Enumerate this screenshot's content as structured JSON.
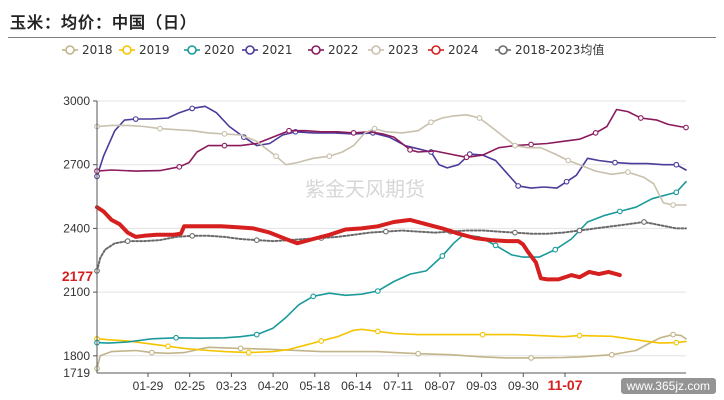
{
  "page": {
    "title": "玉米：均价：中国（日）",
    "watermark": "紫金天风期货",
    "footer": "www.365jz.com"
  },
  "chart_data": {
    "type": "line",
    "title": "玉米：均价：中国（日）",
    "legend_position": "top",
    "grid": "horizontal",
    "x_ticks": [
      "01-29",
      "02-25",
      "03-23",
      "04-20",
      "05-18",
      "06-14",
      "07-11",
      "08-07",
      "09-03",
      "09-30",
      "11-07"
    ],
    "ylim": [
      1719,
      3000
    ],
    "y_ticks": [
      1800,
      2100,
      2400,
      2700,
      3000
    ],
    "y_min_label": "1719",
    "last_value_label": "2177",
    "series": [
      {
        "name": "2018",
        "color": "#c2b48a",
        "width": 1.6,
        "points": [
          [
            1,
            1740
          ],
          [
            3,
            1800
          ],
          [
            10,
            1820
          ],
          [
            25,
            1825
          ],
          [
            35,
            1815
          ],
          [
            45,
            1812
          ],
          [
            55,
            1815
          ],
          [
            70,
            1840
          ],
          [
            90,
            1835
          ],
          [
            110,
            1830
          ],
          [
            140,
            1820
          ],
          [
            175,
            1820
          ],
          [
            200,
            1810
          ],
          [
            220,
            1805
          ],
          [
            240,
            1795
          ],
          [
            255,
            1790
          ],
          [
            270,
            1790
          ],
          [
            290,
            1792
          ],
          [
            300,
            1795
          ],
          [
            310,
            1800
          ],
          [
            320,
            1805
          ],
          [
            335,
            1825
          ],
          [
            343,
            1858
          ],
          [
            350,
            1885
          ],
          [
            358,
            1900
          ],
          [
            363,
            1895
          ],
          [
            366,
            1880
          ]
        ]
      },
      {
        "name": "2019",
        "color": "#f5c400",
        "width": 1.6,
        "points": [
          [
            1,
            1880
          ],
          [
            10,
            1875
          ],
          [
            20,
            1870
          ],
          [
            30,
            1860
          ],
          [
            45,
            1845
          ],
          [
            55,
            1835
          ],
          [
            70,
            1825
          ],
          [
            80,
            1820
          ],
          [
            95,
            1815
          ],
          [
            110,
            1820
          ],
          [
            120,
            1830
          ],
          [
            130,
            1850
          ],
          [
            140,
            1870
          ],
          [
            150,
            1890
          ],
          [
            160,
            1920
          ],
          [
            165,
            1925
          ],
          [
            175,
            1915
          ],
          [
            185,
            1905
          ],
          [
            200,
            1900
          ],
          [
            220,
            1900
          ],
          [
            240,
            1900
          ],
          [
            260,
            1900
          ],
          [
            275,
            1895
          ],
          [
            290,
            1890
          ],
          [
            300,
            1895
          ],
          [
            320,
            1892
          ],
          [
            340,
            1870
          ],
          [
            350,
            1860
          ],
          [
            360,
            1862
          ],
          [
            366,
            1868
          ]
        ]
      },
      {
        "name": "2020",
        "color": "#1a9a9a",
        "width": 1.6,
        "points": [
          [
            1,
            1862
          ],
          [
            8,
            1860
          ],
          [
            20,
            1865
          ],
          [
            35,
            1880
          ],
          [
            50,
            1885
          ],
          [
            65,
            1883
          ],
          [
            80,
            1885
          ],
          [
            90,
            1890
          ],
          [
            100,
            1900
          ],
          [
            110,
            1930
          ],
          [
            118,
            1980
          ],
          [
            126,
            2040
          ],
          [
            135,
            2080
          ],
          [
            145,
            2095
          ],
          [
            155,
            2085
          ],
          [
            165,
            2090
          ],
          [
            175,
            2105
          ],
          [
            185,
            2150
          ],
          [
            195,
            2185
          ],
          [
            205,
            2200
          ],
          [
            215,
            2270
          ],
          [
            222,
            2330
          ],
          [
            228,
            2370
          ],
          [
            238,
            2360
          ],
          [
            248,
            2320
          ],
          [
            258,
            2275
          ],
          [
            265,
            2265
          ],
          [
            275,
            2265
          ],
          [
            285,
            2300
          ],
          [
            295,
            2350
          ],
          [
            305,
            2430
          ],
          [
            315,
            2460
          ],
          [
            325,
            2480
          ],
          [
            335,
            2500
          ],
          [
            345,
            2540
          ],
          [
            355,
            2560
          ],
          [
            360,
            2570
          ],
          [
            366,
            2620
          ]
        ]
      },
      {
        "name": "2021",
        "color": "#4d3a9a",
        "width": 1.6,
        "points": [
          [
            1,
            2645
          ],
          [
            5,
            2740
          ],
          [
            12,
            2860
          ],
          [
            18,
            2910
          ],
          [
            25,
            2915
          ],
          [
            35,
            2915
          ],
          [
            45,
            2920
          ],
          [
            52,
            2945
          ],
          [
            60,
            2965
          ],
          [
            68,
            2975
          ],
          [
            75,
            2945
          ],
          [
            83,
            2880
          ],
          [
            92,
            2830
          ],
          [
            100,
            2790
          ],
          [
            108,
            2800
          ],
          [
            116,
            2840
          ],
          [
            124,
            2855
          ],
          [
            135,
            2850
          ],
          [
            148,
            2850
          ],
          [
            160,
            2845
          ],
          [
            172,
            2850
          ],
          [
            182,
            2830
          ],
          [
            192,
            2790
          ],
          [
            200,
            2775
          ],
          [
            208,
            2760
          ],
          [
            213,
            2700
          ],
          [
            218,
            2685
          ],
          [
            225,
            2700
          ],
          [
            232,
            2750
          ],
          [
            240,
            2745
          ],
          [
            248,
            2720
          ],
          [
            255,
            2660
          ],
          [
            262,
            2600
          ],
          [
            270,
            2590
          ],
          [
            278,
            2595
          ],
          [
            286,
            2590
          ],
          [
            292,
            2620
          ],
          [
            298,
            2650
          ],
          [
            305,
            2730
          ],
          [
            312,
            2720
          ],
          [
            322,
            2710
          ],
          [
            332,
            2705
          ],
          [
            342,
            2705
          ],
          [
            352,
            2700
          ],
          [
            360,
            2700
          ],
          [
            366,
            2675
          ]
        ]
      },
      {
        "name": "2022",
        "color": "#8a1a5c",
        "width": 1.6,
        "points": [
          [
            1,
            2670
          ],
          [
            10,
            2675
          ],
          [
            25,
            2670
          ],
          [
            40,
            2672
          ],
          [
            52,
            2690
          ],
          [
            58,
            2710
          ],
          [
            63,
            2760
          ],
          [
            70,
            2790
          ],
          [
            80,
            2790
          ],
          [
            90,
            2790
          ],
          [
            100,
            2800
          ],
          [
            110,
            2830
          ],
          [
            120,
            2860
          ],
          [
            130,
            2860
          ],
          [
            140,
            2855
          ],
          [
            150,
            2855
          ],
          [
            160,
            2850
          ],
          [
            170,
            2855
          ],
          [
            178,
            2845
          ],
          [
            185,
            2830
          ],
          [
            195,
            2770
          ],
          [
            200,
            2760
          ],
          [
            210,
            2765
          ],
          [
            220,
            2750
          ],
          [
            230,
            2735
          ],
          [
            240,
            2745
          ],
          [
            250,
            2780
          ],
          [
            260,
            2790
          ],
          [
            270,
            2795
          ],
          [
            280,
            2800
          ],
          [
            290,
            2810
          ],
          [
            300,
            2820
          ],
          [
            310,
            2850
          ],
          [
            317,
            2880
          ],
          [
            323,
            2960
          ],
          [
            330,
            2950
          ],
          [
            338,
            2920
          ],
          [
            348,
            2910
          ],
          [
            355,
            2890
          ],
          [
            362,
            2880
          ],
          [
            366,
            2875
          ]
        ]
      },
      {
        "name": "2023",
        "color": "#c9c0ad",
        "width": 1.6,
        "points": [
          [
            1,
            2880
          ],
          [
            10,
            2885
          ],
          [
            20,
            2885
          ],
          [
            30,
            2880
          ],
          [
            40,
            2870
          ],
          [
            50,
            2865
          ],
          [
            60,
            2860
          ],
          [
            70,
            2850
          ],
          [
            80,
            2845
          ],
          [
            90,
            2840
          ],
          [
            100,
            2810
          ],
          [
            105,
            2780
          ],
          [
            112,
            2740
          ],
          [
            118,
            2700
          ],
          [
            125,
            2710
          ],
          [
            135,
            2730
          ],
          [
            145,
            2740
          ],
          [
            153,
            2760
          ],
          [
            160,
            2790
          ],
          [
            167,
            2850
          ],
          [
            173,
            2870
          ],
          [
            180,
            2855
          ],
          [
            190,
            2850
          ],
          [
            200,
            2860
          ],
          [
            208,
            2900
          ],
          [
            215,
            2920
          ],
          [
            222,
            2930
          ],
          [
            230,
            2935
          ],
          [
            238,
            2920
          ],
          [
            245,
            2880
          ],
          [
            250,
            2850
          ],
          [
            255,
            2820
          ],
          [
            260,
            2790
          ],
          [
            268,
            2780
          ],
          [
            276,
            2780
          ],
          [
            285,
            2750
          ],
          [
            293,
            2720
          ],
          [
            300,
            2700
          ],
          [
            310,
            2670
          ],
          [
            320,
            2655
          ],
          [
            330,
            2665
          ],
          [
            340,
            2640
          ],
          [
            346,
            2610
          ],
          [
            352,
            2520
          ],
          [
            358,
            2510
          ],
          [
            366,
            2510
          ]
        ]
      },
      {
        "name": "2024",
        "color": "#d61f1f",
        "width": 4,
        "points": [
          [
            1,
            2500
          ],
          [
            5,
            2480
          ],
          [
            10,
            2440
          ],
          [
            15,
            2420
          ],
          [
            20,
            2380
          ],
          [
            25,
            2360
          ],
          [
            30,
            2365
          ],
          [
            38,
            2370
          ],
          [
            48,
            2370
          ],
          [
            53,
            2375
          ],
          [
            55,
            2410
          ],
          [
            62,
            2410
          ],
          [
            70,
            2410
          ],
          [
            78,
            2410
          ],
          [
            88,
            2405
          ],
          [
            98,
            2400
          ],
          [
            108,
            2380
          ],
          [
            118,
            2350
          ],
          [
            125,
            2330
          ],
          [
            135,
            2350
          ],
          [
            145,
            2370
          ],
          [
            155,
            2395
          ],
          [
            165,
            2400
          ],
          [
            175,
            2410
          ],
          [
            185,
            2430
          ],
          [
            195,
            2440
          ],
          [
            205,
            2420
          ],
          [
            215,
            2400
          ],
          [
            225,
            2375
          ],
          [
            235,
            2355
          ],
          [
            245,
            2345
          ],
          [
            255,
            2340
          ],
          [
            262,
            2340
          ],
          [
            265,
            2325
          ],
          [
            268,
            2290
          ],
          [
            273,
            2240
          ],
          [
            276,
            2165
          ],
          [
            280,
            2160
          ],
          [
            287,
            2160
          ],
          [
            295,
            2180
          ],
          [
            300,
            2170
          ],
          [
            306,
            2195
          ],
          [
            312,
            2185
          ],
          [
            318,
            2195
          ],
          [
            325,
            2180
          ]
        ]
      },
      {
        "name": "2018-2023均值",
        "color": "#6a6a6a",
        "width": 2,
        "dash": "2,2",
        "points": [
          [
            1,
            2200
          ],
          [
            3,
            2260
          ],
          [
            6,
            2300
          ],
          [
            12,
            2330
          ],
          [
            20,
            2340
          ],
          [
            30,
            2340
          ],
          [
            40,
            2345
          ],
          [
            50,
            2360
          ],
          [
            60,
            2365
          ],
          [
            70,
            2365
          ],
          [
            80,
            2360
          ],
          [
            90,
            2350
          ],
          [
            100,
            2345
          ],
          [
            110,
            2340
          ],
          [
            120,
            2345
          ],
          [
            130,
            2350
          ],
          [
            140,
            2355
          ],
          [
            150,
            2360
          ],
          [
            160,
            2370
          ],
          [
            170,
            2380
          ],
          [
            180,
            2385
          ],
          [
            190,
            2390
          ],
          [
            200,
            2385
          ],
          [
            210,
            2380
          ],
          [
            220,
            2385
          ],
          [
            230,
            2390
          ],
          [
            240,
            2390
          ],
          [
            250,
            2385
          ],
          [
            260,
            2380
          ],
          [
            270,
            2375
          ],
          [
            280,
            2375
          ],
          [
            290,
            2380
          ],
          [
            300,
            2390
          ],
          [
            310,
            2400
          ],
          [
            320,
            2410
          ],
          [
            330,
            2420
          ],
          [
            340,
            2430
          ],
          [
            350,
            2415
          ],
          [
            360,
            2400
          ],
          [
            366,
            2400
          ]
        ]
      }
    ]
  }
}
